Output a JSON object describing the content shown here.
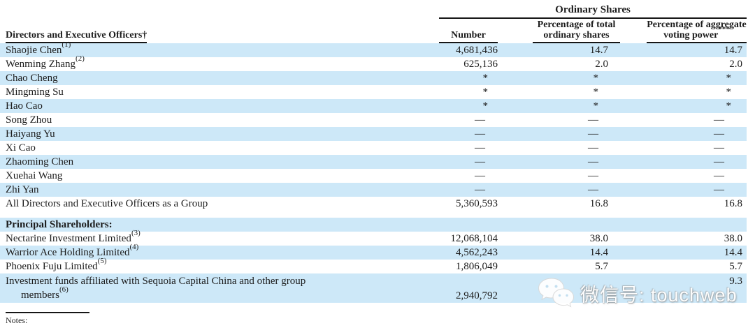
{
  "colors": {
    "row_highlight": "#cde8f8",
    "text": "#1c1c1c",
    "rule": "#161616",
    "watermark_text_color": "#fdfdfd"
  },
  "table": {
    "group_header": "Ordinary Shares",
    "first_col_header": "Directors and Executive Officers†",
    "col_number": {
      "label": "Number"
    },
    "col_pct_shares": {
      "line1": "Percentage of total",
      "line2": "ordinary shares"
    },
    "col_voting": {
      "line1": "Percentage of aggregate",
      "line2": "voting power",
      "sup": "***"
    },
    "rows": [
      {
        "name": "Shaojie Chen",
        "note": "(1)",
        "number": "4,681,436",
        "pct_shares": "14.7",
        "pct_voting": "14.7",
        "shaded": true
      },
      {
        "name": "Wenming Zhang",
        "note": "(2)",
        "number": "625,136",
        "pct_shares": "2.0",
        "pct_voting": "2.0",
        "shaded": false
      },
      {
        "name": "Chao Cheng",
        "number": "*",
        "pct_shares": "*",
        "pct_voting": "*",
        "shaded": true
      },
      {
        "name": "Mingming Su",
        "number": "*",
        "pct_shares": "*",
        "pct_voting": "*",
        "shaded": false
      },
      {
        "name": "Hao Cao",
        "number": "*",
        "pct_shares": "*",
        "pct_voting": "*",
        "shaded": true
      },
      {
        "name": "Song Zhou",
        "number": "—",
        "pct_shares": "—",
        "pct_voting": "—",
        "shaded": false
      },
      {
        "name": "Haiyang Yu",
        "number": "—",
        "pct_shares": "—",
        "pct_voting": "—",
        "shaded": true
      },
      {
        "name": "Xi Cao",
        "number": "—",
        "pct_shares": "—",
        "pct_voting": "—",
        "shaded": false
      },
      {
        "name": "Zhaoming Chen",
        "number": "—",
        "pct_shares": "—",
        "pct_voting": "—",
        "shaded": true
      },
      {
        "name": "Xuehai Wang",
        "number": "—",
        "pct_shares": "—",
        "pct_voting": "—",
        "shaded": false
      },
      {
        "name": "Zhi Yan",
        "number": "—",
        "pct_shares": "—",
        "pct_voting": "—",
        "shaded": true
      },
      {
        "name": "All Directors and Executive Officers as a Group",
        "number": "5,360,593",
        "pct_shares": "16.8",
        "pct_voting": "16.8",
        "shaded": false
      },
      {
        "spacer": true
      },
      {
        "name": "Principal Shareholders:",
        "bold": true,
        "shaded": true
      },
      {
        "name": "Nectarine Investment Limited",
        "note": "(3)",
        "number": "12,068,104",
        "pct_shares": "38.0",
        "pct_voting": "38.0",
        "shaded": false
      },
      {
        "name": "Warrior Ace Holding Limited",
        "note": "(4)",
        "number": "4,562,243",
        "pct_shares": "14.4",
        "pct_voting": "14.4",
        "shaded": true
      },
      {
        "name": "Phoenix Fuju Limited",
        "note": "(5)",
        "number": "1,806,049",
        "pct_shares": "5.7",
        "pct_voting": "5.7",
        "shaded": false
      },
      {
        "name": "Investment funds affiliated with Sequoia Capital China and other group",
        "name_line2": "members",
        "note": "(6)",
        "number": "2,940,792",
        "pct_shares": "",
        "pct_voting": "9.3",
        "shaded": true,
        "tall": true,
        "pct_shares_covered_by_watermark": true
      }
    ]
  },
  "watermark": {
    "icon": "wechat-icon",
    "text": "微信号: touchweb"
  },
  "footer": {
    "notes_label": "Notes:"
  }
}
